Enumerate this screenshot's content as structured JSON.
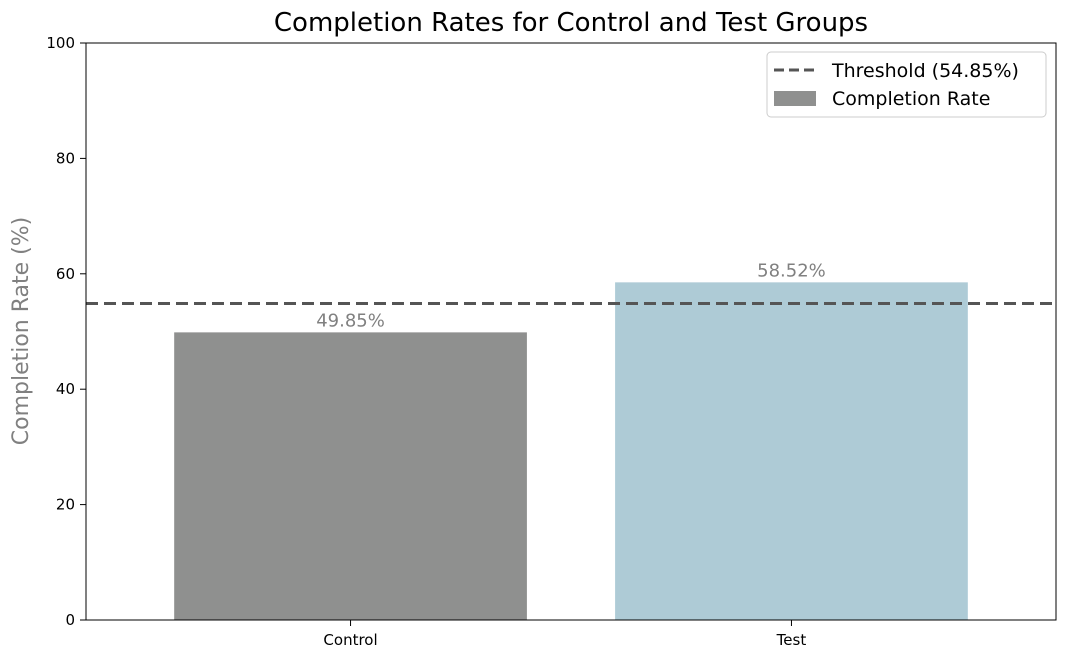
{
  "chart_data": {
    "type": "bar",
    "title": "Completion Rates for Control and Test Groups",
    "xlabel": "",
    "ylabel": "Completion Rate (%)",
    "ylim": [
      0,
      100
    ],
    "yticks": [
      0,
      20,
      40,
      60,
      80,
      100
    ],
    "categories": [
      "Control",
      "Test"
    ],
    "values": [
      49.85,
      58.52
    ],
    "value_labels": [
      "49.85%",
      "58.52%"
    ],
    "bar_colors": [
      "#8f908f",
      "#aecbd6"
    ],
    "threshold": {
      "value": 54.85,
      "label": "Threshold (54.85%)",
      "color": "#555555",
      "style": "dashed"
    },
    "legend": {
      "placement": "top-right",
      "entries": [
        "Threshold (54.85%)",
        "Completion Rate"
      ]
    },
    "grid": false
  }
}
